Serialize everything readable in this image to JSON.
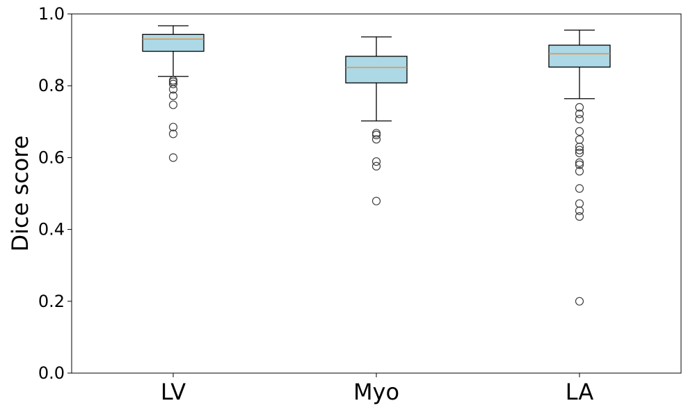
{
  "chart_data": {
    "type": "box",
    "title": "",
    "xlabel": "",
    "ylabel": "Dice score",
    "ylim": [
      0.0,
      1.0
    ],
    "yticks": [
      "0.0",
      "0.2",
      "0.4",
      "0.6",
      "0.8",
      "1.0"
    ],
    "categories": [
      "LV",
      "Myo",
      "LA"
    ],
    "grid": false,
    "colors": {
      "box_fill": "#add8e6",
      "median": "#ff7f0e",
      "edge": "#000000",
      "outlier": "#3c3c3c"
    },
    "boxes": [
      {
        "name": "LV",
        "whisker_low": 0.826,
        "q1": 0.896,
        "median": 0.93,
        "q3": 0.943,
        "whisker_high": 0.967,
        "outliers": [
          0.815,
          0.811,
          0.805,
          0.79,
          0.772,
          0.747,
          0.685,
          0.666,
          0.6
        ]
      },
      {
        "name": "Myo",
        "whisker_low": 0.702,
        "q1": 0.808,
        "median": 0.851,
        "q3": 0.882,
        "whisker_high": 0.936,
        "outliers": [
          0.668,
          0.663,
          0.651,
          0.589,
          0.576,
          0.479
        ]
      },
      {
        "name": "LA",
        "whisker_low": 0.764,
        "q1": 0.852,
        "median": 0.889,
        "q3": 0.913,
        "whisker_high": 0.955,
        "outliers": [
          0.74,
          0.722,
          0.707,
          0.673,
          0.65,
          0.63,
          0.621,
          0.613,
          0.586,
          0.58,
          0.562,
          0.514,
          0.472,
          0.452,
          0.436,
          0.2
        ]
      }
    ]
  }
}
